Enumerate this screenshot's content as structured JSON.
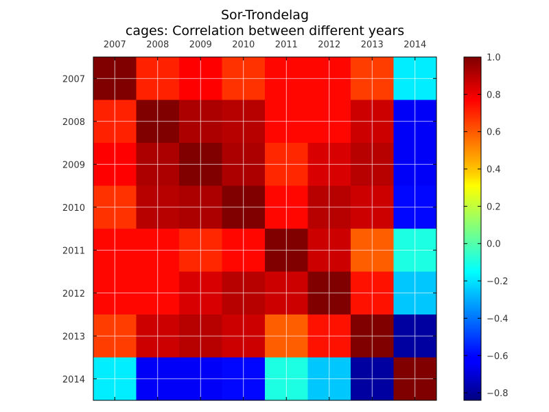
{
  "chart_data": {
    "type": "heatmap",
    "title": "Sor-Trondelag",
    "subtitle": "cages: Correlation between different years",
    "x_labels": [
      "2007",
      "2008",
      "2009",
      "2010",
      "2011",
      "2012",
      "2013",
      "2014"
    ],
    "y_labels": [
      "2007",
      "2008",
      "2009",
      "2010",
      "2011",
      "2012",
      "2013",
      "2014"
    ],
    "matrix": [
      [
        1.0,
        0.71,
        0.77,
        0.68,
        0.76,
        0.76,
        0.66,
        -0.18
      ],
      [
        0.71,
        1.0,
        0.92,
        0.9,
        0.76,
        0.76,
        0.86,
        -0.62
      ],
      [
        0.77,
        0.92,
        1.0,
        0.92,
        0.7,
        0.84,
        0.9,
        -0.62
      ],
      [
        0.68,
        0.9,
        0.92,
        1.0,
        0.76,
        0.9,
        0.86,
        -0.6
      ],
      [
        0.76,
        0.76,
        0.7,
        0.76,
        1.0,
        0.86,
        0.6,
        -0.1
      ],
      [
        0.76,
        0.76,
        0.84,
        0.9,
        0.86,
        1.0,
        0.74,
        -0.25
      ],
      [
        0.66,
        0.86,
        0.9,
        0.86,
        0.6,
        0.74,
        1.0,
        -0.78
      ],
      [
        -0.18,
        -0.62,
        -0.62,
        -0.6,
        -0.1,
        -0.25,
        -0.78,
        1.0
      ]
    ],
    "colormap": "jet",
    "vmin": -0.84,
    "vmax": 1.0,
    "colorbar_ticks": [
      "1.0",
      "0.8",
      "0.6",
      "0.4",
      "0.2",
      "0.0",
      "−0.2",
      "−0.4",
      "−0.6",
      "−0.8"
    ],
    "colorbar_tick_values": [
      1.0,
      0.8,
      0.6,
      0.4,
      0.2,
      0.0,
      -0.2,
      -0.4,
      -0.6,
      -0.8
    ],
    "grid": true
  }
}
